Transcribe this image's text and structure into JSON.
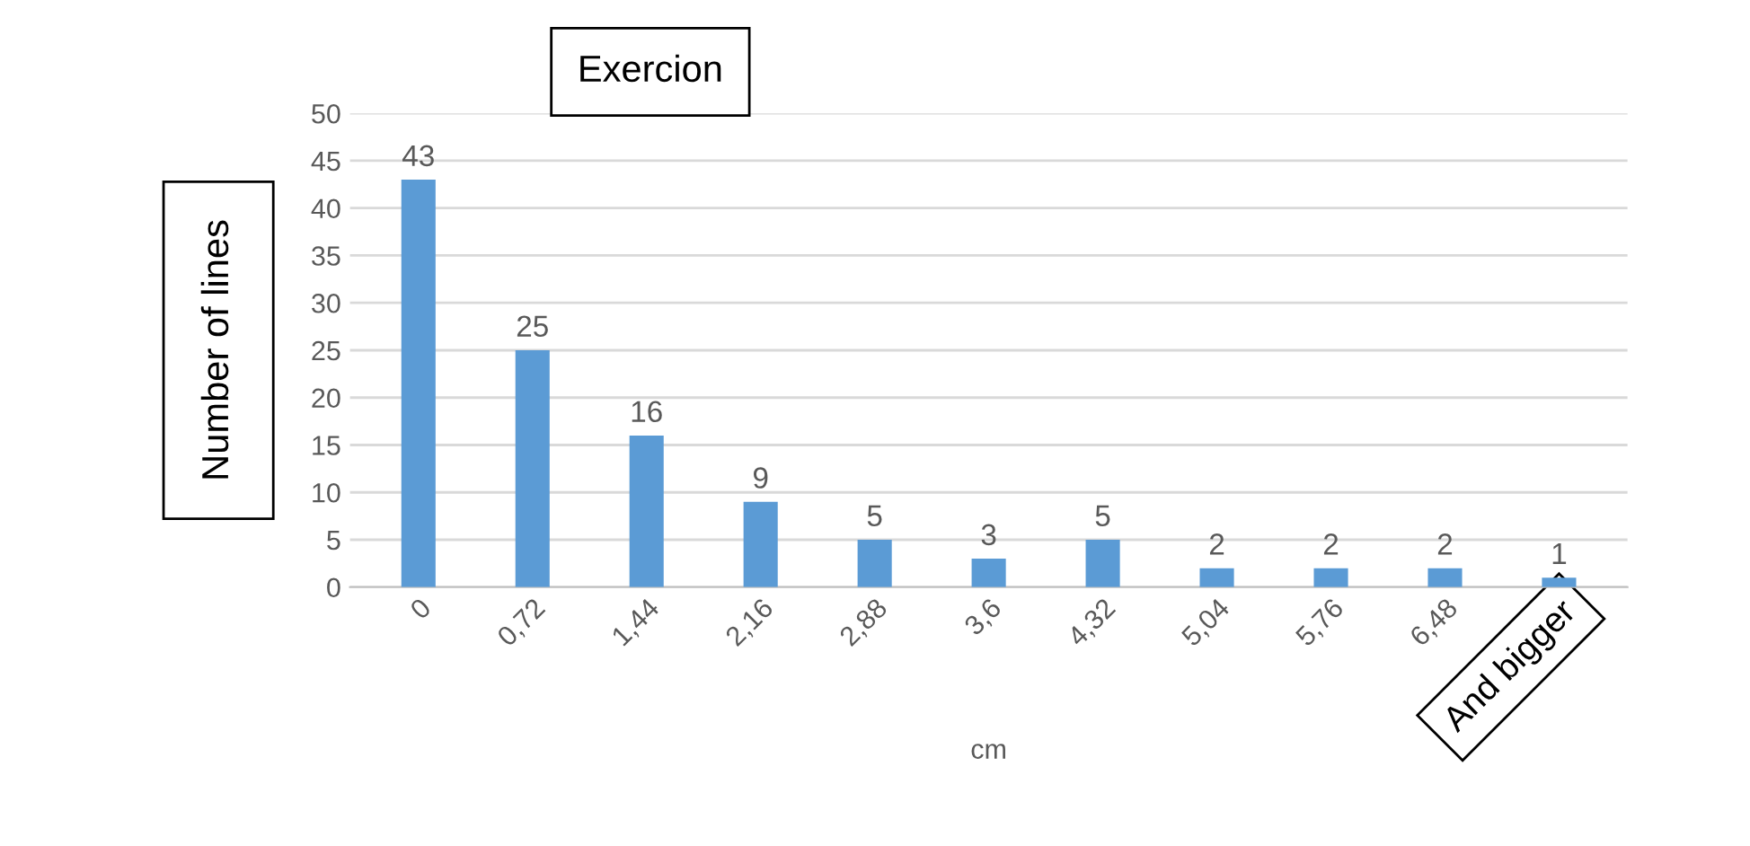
{
  "chart_data": {
    "type": "bar",
    "title": "Exercion",
    "xlabel": "cm",
    "ylabel": "Number of lines",
    "categories": [
      "0",
      "0,72",
      "1,44",
      "2,16",
      "2,88",
      "3,6",
      "4,32",
      "5,04",
      "5,76",
      "6,48",
      "And bigger"
    ],
    "values": [
      43,
      25,
      16,
      9,
      5,
      3,
      5,
      2,
      2,
      2,
      1
    ],
    "color": "#5b9bd5",
    "ylim": [
      0,
      50
    ],
    "yticks": [
      0,
      5,
      10,
      15,
      20,
      25,
      30,
      35,
      40,
      45,
      50
    ],
    "grid": "y",
    "data_labels": true
  }
}
